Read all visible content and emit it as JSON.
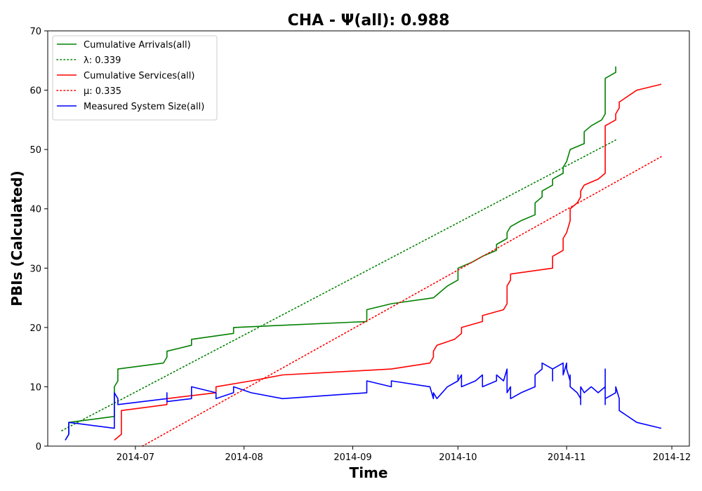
{
  "chart_data": {
    "type": "line",
    "title": "CHA -  Ψ(all): 0.988",
    "xlabel": "Time",
    "ylabel": "PBIs (Calculated)",
    "xlim": [
      "2014-06-06",
      "2014-12-06"
    ],
    "ylim": [
      0,
      70
    ],
    "x_ticks": [
      "2014-07-01",
      "2014-08-01",
      "2014-09-01",
      "2014-10-01",
      "2014-11-01",
      "2014-12-01"
    ],
    "x_tick_labels": [
      "2014-07",
      "2014-08",
      "2014-09",
      "2014-10",
      "2014-11",
      "2014-12"
    ],
    "y_ticks": [
      0,
      10,
      20,
      30,
      40,
      50,
      60,
      70
    ],
    "legend_position": "top-left",
    "grid": false,
    "series": [
      {
        "name": "Cumulative Arrivals(all)",
        "color": "#008000",
        "style": "solid",
        "points": [
          [
            "2014-06-11",
            1
          ],
          [
            "2014-06-12",
            2
          ],
          [
            "2014-06-12",
            4
          ],
          [
            "2014-06-25",
            5
          ],
          [
            "2014-06-25",
            10
          ],
          [
            "2014-06-26",
            11
          ],
          [
            "2014-06-26",
            13
          ],
          [
            "2014-07-09",
            14
          ],
          [
            "2014-07-10",
            15
          ],
          [
            "2014-07-10",
            16
          ],
          [
            "2014-07-17",
            17
          ],
          [
            "2014-07-17",
            18
          ],
          [
            "2014-07-29",
            19
          ],
          [
            "2014-07-29",
            20
          ],
          [
            "2014-09-05",
            21
          ],
          [
            "2014-09-05",
            23
          ],
          [
            "2014-09-12",
            24
          ],
          [
            "2014-09-24",
            25
          ],
          [
            "2014-09-26",
            26
          ],
          [
            "2014-09-28",
            27
          ],
          [
            "2014-10-01",
            28
          ],
          [
            "2014-10-01",
            30
          ],
          [
            "2014-10-05",
            31
          ],
          [
            "2014-10-08",
            32
          ],
          [
            "2014-10-12",
            33
          ],
          [
            "2014-10-12",
            34
          ],
          [
            "2014-10-15",
            35
          ],
          [
            "2014-10-15",
            36
          ],
          [
            "2014-10-16",
            37
          ],
          [
            "2014-10-19",
            38
          ],
          [
            "2014-10-23",
            39
          ],
          [
            "2014-10-23",
            41
          ],
          [
            "2014-10-25",
            42
          ],
          [
            "2014-10-25",
            43
          ],
          [
            "2014-10-28",
            44
          ],
          [
            "2014-10-28",
            45
          ],
          [
            "2014-10-31",
            46
          ],
          [
            "2014-10-31",
            47
          ],
          [
            "2014-11-01",
            48
          ],
          [
            "2014-11-02",
            50
          ],
          [
            "2014-11-06",
            51
          ],
          [
            "2014-11-06",
            53
          ],
          [
            "2014-11-08",
            54
          ],
          [
            "2014-11-11",
            55
          ],
          [
            "2014-11-12",
            56
          ],
          [
            "2014-11-12",
            60
          ],
          [
            "2014-11-12",
            62
          ],
          [
            "2014-11-15",
            63
          ],
          [
            "2014-11-15",
            64
          ]
        ]
      },
      {
        "name": "λ: 0.339",
        "color": "#008000",
        "style": "dotted",
        "points": [
          [
            "2014-06-10",
            2.6
          ],
          [
            "2014-11-15",
            51.6
          ]
        ]
      },
      {
        "name": "Cumulative Services(all)",
        "color": "#ff0000",
        "style": "solid",
        "points": [
          [
            "2014-06-25",
            1
          ],
          [
            "2014-06-27",
            2
          ],
          [
            "2014-06-27",
            6
          ],
          [
            "2014-07-10",
            7
          ],
          [
            "2014-07-10",
            8
          ],
          [
            "2014-07-24",
            9
          ],
          [
            "2014-07-24",
            10
          ],
          [
            "2014-08-03",
            11
          ],
          [
            "2014-08-12",
            12
          ],
          [
            "2014-09-12",
            13
          ],
          [
            "2014-09-23",
            14
          ],
          [
            "2014-09-24",
            15
          ],
          [
            "2014-09-24",
            16
          ],
          [
            "2014-09-25",
            17
          ],
          [
            "2014-09-30",
            18
          ],
          [
            "2014-10-02",
            19
          ],
          [
            "2014-10-02",
            20
          ],
          [
            "2014-10-08",
            21
          ],
          [
            "2014-10-08",
            22
          ],
          [
            "2014-10-14",
            23
          ],
          [
            "2014-10-15",
            24
          ],
          [
            "2014-10-15",
            27
          ],
          [
            "2014-10-16",
            28
          ],
          [
            "2014-10-16",
            29
          ],
          [
            "2014-10-28",
            30
          ],
          [
            "2014-10-28",
            32
          ],
          [
            "2014-10-31",
            33
          ],
          [
            "2014-10-31",
            35
          ],
          [
            "2014-11-01",
            36
          ],
          [
            "2014-11-02",
            38
          ],
          [
            "2014-11-02",
            40
          ],
          [
            "2014-11-04",
            41
          ],
          [
            "2014-11-05",
            42
          ],
          [
            "2014-11-05",
            43
          ],
          [
            "2014-11-06",
            44
          ],
          [
            "2014-11-10",
            45
          ],
          [
            "2014-11-12",
            46
          ],
          [
            "2014-11-12",
            48
          ],
          [
            "2014-11-12",
            54
          ],
          [
            "2014-11-15",
            55
          ],
          [
            "2014-11-15",
            56
          ],
          [
            "2014-11-16",
            57
          ],
          [
            "2014-11-16",
            58
          ],
          [
            "2014-11-21",
            60
          ],
          [
            "2014-11-28",
            61
          ]
        ]
      },
      {
        "name": "μ: 0.335",
        "color": "#ff0000",
        "style": "dotted",
        "points": [
          [
            "2014-07-03",
            0
          ],
          [
            "2014-11-28",
            48.8
          ]
        ]
      },
      {
        "name": "Measured System Size(all)",
        "color": "#0000ff",
        "style": "solid",
        "points": [
          [
            "2014-06-11",
            1
          ],
          [
            "2014-06-12",
            2
          ],
          [
            "2014-06-12",
            4
          ],
          [
            "2014-06-25",
            3
          ],
          [
            "2014-06-25",
            9
          ],
          [
            "2014-06-26",
            8
          ],
          [
            "2014-06-26",
            7
          ],
          [
            "2014-07-10",
            8
          ],
          [
            "2014-07-10",
            9
          ],
          [
            "2014-07-10",
            7.5
          ],
          [
            "2014-07-17",
            8
          ],
          [
            "2014-07-17",
            10
          ],
          [
            "2014-07-24",
            9
          ],
          [
            "2014-07-24",
            8
          ],
          [
            "2014-07-29",
            9
          ],
          [
            "2014-07-29",
            10
          ],
          [
            "2014-08-03",
            9
          ],
          [
            "2014-08-12",
            8
          ],
          [
            "2014-09-05",
            9
          ],
          [
            "2014-09-05",
            11
          ],
          [
            "2014-09-12",
            10
          ],
          [
            "2014-09-12",
            11
          ],
          [
            "2014-09-23",
            10
          ],
          [
            "2014-09-24",
            8
          ],
          [
            "2014-09-24",
            9
          ],
          [
            "2014-09-25",
            8
          ],
          [
            "2014-09-28",
            10
          ],
          [
            "2014-10-01",
            11
          ],
          [
            "2014-10-01",
            12
          ],
          [
            "2014-10-01",
            11
          ],
          [
            "2014-10-02",
            12
          ],
          [
            "2014-10-02",
            10
          ],
          [
            "2014-10-06",
            11
          ],
          [
            "2014-10-08",
            12
          ],
          [
            "2014-10-08",
            10
          ],
          [
            "2014-10-12",
            11
          ],
          [
            "2014-10-12",
            12
          ],
          [
            "2014-10-14",
            11
          ],
          [
            "2014-10-15",
            13
          ],
          [
            "2014-10-15",
            9
          ],
          [
            "2014-10-16",
            10
          ],
          [
            "2014-10-16",
            8
          ],
          [
            "2014-10-19",
            9
          ],
          [
            "2014-10-23",
            10
          ],
          [
            "2014-10-23",
            12
          ],
          [
            "2014-10-25",
            13
          ],
          [
            "2014-10-25",
            14
          ],
          [
            "2014-10-28",
            13
          ],
          [
            "2014-10-28",
            11
          ],
          [
            "2014-10-28",
            13
          ],
          [
            "2014-10-31",
            14
          ],
          [
            "2014-10-31",
            13
          ],
          [
            "2014-10-31",
            12
          ],
          [
            "2014-11-01",
            14
          ],
          [
            "2014-11-01",
            13
          ],
          [
            "2014-11-02",
            11
          ],
          [
            "2014-11-02",
            12
          ],
          [
            "2014-11-02",
            10
          ],
          [
            "2014-11-04",
            9
          ],
          [
            "2014-11-05",
            8
          ],
          [
            "2014-11-05",
            7
          ],
          [
            "2014-11-05",
            10
          ],
          [
            "2014-11-06",
            9
          ],
          [
            "2014-11-08",
            10
          ],
          [
            "2014-11-10",
            9
          ],
          [
            "2014-11-12",
            10
          ],
          [
            "2014-11-12",
            8
          ],
          [
            "2014-11-12",
            13
          ],
          [
            "2014-11-12",
            7
          ],
          [
            "2014-11-12",
            8
          ],
          [
            "2014-11-15",
            9
          ],
          [
            "2014-11-15",
            10
          ],
          [
            "2014-11-16",
            8
          ],
          [
            "2014-11-16",
            7
          ],
          [
            "2014-11-16",
            6
          ],
          [
            "2014-11-21",
            4
          ],
          [
            "2014-11-28",
            3
          ]
        ]
      }
    ]
  }
}
